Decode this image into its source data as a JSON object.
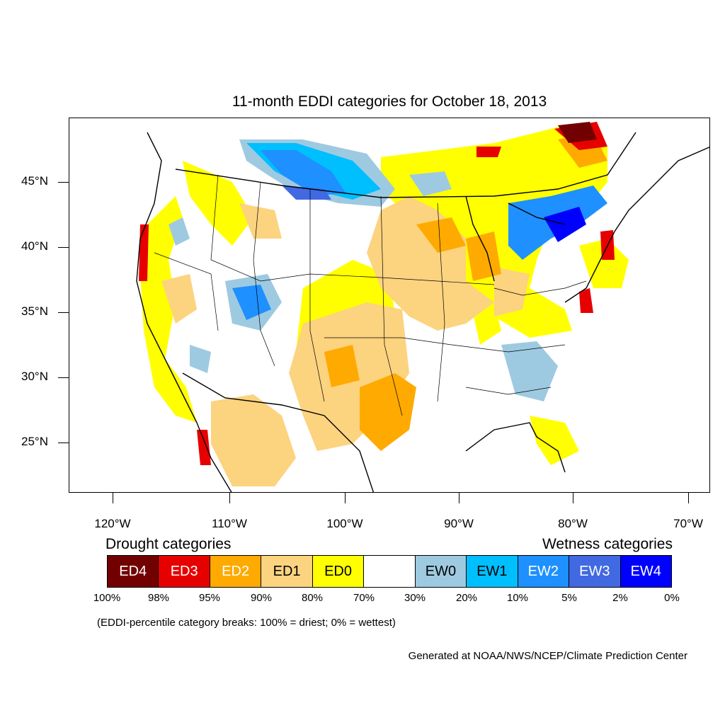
{
  "title": "11-month EDDI categories for October 18, 2013",
  "lat_labels": [
    "45°N",
    "40°N",
    "35°N",
    "30°N",
    "25°N"
  ],
  "lon_labels": [
    "120°W",
    "110°W",
    "100°W",
    "90°W",
    "80°W",
    "70°W"
  ],
  "legend": {
    "drought_heading": "Drought categories",
    "wetness_heading": "Wetness categories",
    "categories": [
      {
        "label": "ED4",
        "color": "#730000",
        "text_color": "#ffffff"
      },
      {
        "label": "ED3",
        "color": "#e60000",
        "text_color": "#ffffff"
      },
      {
        "label": "ED2",
        "color": "#ffaa00",
        "text_color": "#ffffff"
      },
      {
        "label": "ED1",
        "color": "#fcd37f",
        "text_color": "#000000"
      },
      {
        "label": "ED0",
        "color": "#ffff00",
        "text_color": "#000000"
      },
      {
        "label": "",
        "color": "#ffffff",
        "text_color": "#000000"
      },
      {
        "label": "EW0",
        "color": "#9ecae1",
        "text_color": "#000000"
      },
      {
        "label": "EW1",
        "color": "#00bfff",
        "text_color": "#000000"
      },
      {
        "label": "EW2",
        "color": "#1e90ff",
        "text_color": "#ffffff"
      },
      {
        "label": "EW3",
        "color": "#4169e1",
        "text_color": "#ffffff"
      },
      {
        "label": "EW4",
        "color": "#0000ff",
        "text_color": "#ffffff"
      }
    ],
    "breaks": [
      "100%",
      "98%",
      "95%",
      "90%",
      "80%",
      "70%",
      "30%",
      "20%",
      "10%",
      "5%",
      "2%",
      "0%"
    ]
  },
  "note": "(EDDI-percentile category breaks: 100% = driest; 0% = wettest)",
  "credit": "Generated at NOAA/NWS/NCEP/Climate Prediction Center"
}
